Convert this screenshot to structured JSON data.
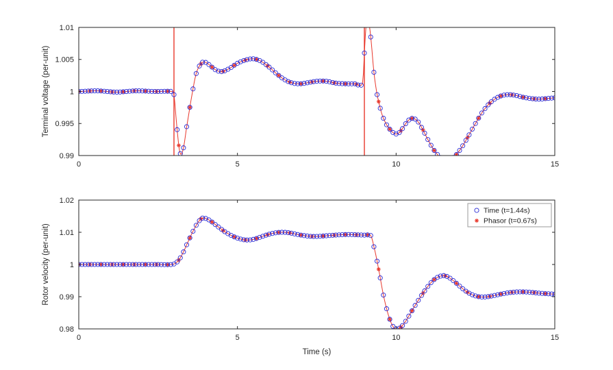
{
  "colors": {
    "time": "#2a2ad4",
    "phasor": "#e8372b",
    "axis": "#262626",
    "background": "#ffffff",
    "legend_border": "#999999"
  },
  "chart_data": [
    {
      "type": "line",
      "title": "",
      "xlabel": "",
      "ylabel": "Terminal voltage (per-unit)",
      "xlim": [
        0,
        15
      ],
      "ylim": [
        0.99,
        1.01
      ],
      "xticks": [
        0,
        5,
        10,
        15
      ],
      "xtick_labels": [
        "0",
        "5",
        "10",
        "15"
      ],
      "yticks": [
        0.99,
        0.995,
        1,
        1.005,
        1.01
      ],
      "ytick_labels": [
        "0.99",
        "0.995",
        "1",
        "1.005",
        "1.01"
      ],
      "grid": false,
      "spikes": [
        3.0,
        9.0
      ],
      "series": [
        {
          "name": "Time (t=1.44s)",
          "marker": "circle",
          "color_key": "time",
          "marker_interval": 0.1
        },
        {
          "name": "Phasor (t=0.67s)",
          "marker": "asterisk",
          "color_key": "phasor",
          "marker_interval": 0.35,
          "line": true
        }
      ],
      "curve": [
        [
          0,
          1.0
        ],
        [
          0.6,
          1.0001
        ],
        [
          1.2,
          0.9999
        ],
        [
          1.8,
          1.0001
        ],
        [
          2.4,
          1.0
        ],
        [
          2.95,
          1.0
        ],
        [
          3.0,
          0.9995
        ],
        [
          3.08,
          0.995
        ],
        [
          3.18,
          0.9906
        ],
        [
          3.28,
          0.9908
        ],
        [
          3.4,
          0.9945
        ],
        [
          3.55,
          0.999
        ],
        [
          3.7,
          1.0028
        ],
        [
          3.85,
          1.0043
        ],
        [
          3.95,
          1.0046
        ],
        [
          4.1,
          1.0042
        ],
        [
          4.3,
          1.0034
        ],
        [
          4.5,
          1.0031
        ],
        [
          4.75,
          1.0036
        ],
        [
          5.0,
          1.0044
        ],
        [
          5.25,
          1.0049
        ],
        [
          5.5,
          1.0051
        ],
        [
          5.75,
          1.0047
        ],
        [
          6.0,
          1.0038
        ],
        [
          6.25,
          1.0027
        ],
        [
          6.5,
          1.0018
        ],
        [
          6.75,
          1.0013
        ],
        [
          7.0,
          1.0012
        ],
        [
          7.25,
          1.0014
        ],
        [
          7.5,
          1.0016
        ],
        [
          7.8,
          1.0016
        ],
        [
          8.1,
          1.0013
        ],
        [
          8.4,
          1.0012
        ],
        [
          8.7,
          1.0012
        ],
        [
          8.95,
          1.0013
        ],
        [
          9.0,
          1.006
        ],
        [
          9.06,
          1.0108
        ],
        [
          9.12,
          1.0112
        ],
        [
          9.2,
          1.0085
        ],
        [
          9.3,
          1.003
        ],
        [
          9.4,
          0.9995
        ],
        [
          9.55,
          0.9965
        ],
        [
          9.7,
          0.9948
        ],
        [
          9.9,
          0.9936
        ],
        [
          10.05,
          0.9934
        ],
        [
          10.2,
          0.9942
        ],
        [
          10.35,
          0.9953
        ],
        [
          10.5,
          0.9958
        ],
        [
          10.65,
          0.9955
        ],
        [
          10.8,
          0.9944
        ],
        [
          11.0,
          0.9925
        ],
        [
          11.2,
          0.9908
        ],
        [
          11.4,
          0.9897
        ],
        [
          11.6,
          0.9893
        ],
        [
          11.8,
          0.9897
        ],
        [
          12.0,
          0.9908
        ],
        [
          12.25,
          0.9928
        ],
        [
          12.5,
          0.995
        ],
        [
          12.75,
          0.997
        ],
        [
          13.0,
          0.9984
        ],
        [
          13.25,
          0.9992
        ],
        [
          13.5,
          0.9995
        ],
        [
          13.75,
          0.9994
        ],
        [
          14.0,
          0.9991
        ],
        [
          14.25,
          0.9989
        ],
        [
          14.5,
          0.9988
        ],
        [
          14.75,
          0.9989
        ],
        [
          15.0,
          0.999
        ]
      ]
    },
    {
      "type": "line",
      "title": "",
      "xlabel": "Time (s)",
      "ylabel": "Rotor velocity (per-unit)",
      "xlim": [
        0,
        15
      ],
      "ylim": [
        0.98,
        1.02
      ],
      "xticks": [
        0,
        5,
        10,
        15
      ],
      "xtick_labels": [
        "0",
        "5",
        "10",
        "15"
      ],
      "yticks": [
        0.98,
        0.99,
        1,
        1.01,
        1.02
      ],
      "ytick_labels": [
        "0.98",
        "0.99",
        "1",
        "1.01",
        "1.02"
      ],
      "grid": false,
      "spikes": [],
      "series": [
        {
          "name": "Time (t=1.44s)",
          "marker": "circle",
          "color_key": "time",
          "marker_interval": 0.1
        },
        {
          "name": "Phasor (t=0.67s)",
          "marker": "asterisk",
          "color_key": "phasor",
          "marker_interval": 0.35,
          "line": true
        }
      ],
      "legend": {
        "position": "northeast",
        "items": [
          {
            "label": "Time (t=1.44s)",
            "marker": "circle",
            "color_key": "time"
          },
          {
            "label": "Phasor (t=0.67s)",
            "marker": "asterisk",
            "color_key": "phasor"
          }
        ]
      },
      "curve": [
        [
          0,
          1.0
        ],
        [
          0.8,
          1.0
        ],
        [
          1.6,
          1.0
        ],
        [
          2.4,
          1.0
        ],
        [
          2.95,
          1.0
        ],
        [
          3.1,
          1.0008
        ],
        [
          3.25,
          1.003
        ],
        [
          3.45,
          1.0072
        ],
        [
          3.65,
          1.0112
        ],
        [
          3.8,
          1.0136
        ],
        [
          3.9,
          1.0144
        ],
        [
          4.0,
          1.0143
        ],
        [
          4.15,
          1.0135
        ],
        [
          4.35,
          1.012
        ],
        [
          4.6,
          1.0102
        ],
        [
          4.85,
          1.0088
        ],
        [
          5.1,
          1.0079
        ],
        [
          5.3,
          1.0076
        ],
        [
          5.5,
          1.0078
        ],
        [
          5.75,
          1.0086
        ],
        [
          6.0,
          1.0094
        ],
        [
          6.25,
          1.0099
        ],
        [
          6.45,
          1.01
        ],
        [
          6.65,
          1.0098
        ],
        [
          6.9,
          1.0093
        ],
        [
          7.15,
          1.0089
        ],
        [
          7.4,
          1.0087
        ],
        [
          7.65,
          1.0088
        ],
        [
          7.9,
          1.009
        ],
        [
          8.2,
          1.0092
        ],
        [
          8.5,
          1.0093
        ],
        [
          8.8,
          1.0092
        ],
        [
          9.05,
          1.0091
        ],
        [
          9.2,
          1.009
        ],
        [
          9.3,
          1.0055
        ],
        [
          9.45,
          0.9985
        ],
        [
          9.6,
          0.9905
        ],
        [
          9.75,
          0.9845
        ],
        [
          9.9,
          0.9808
        ],
        [
          10.0,
          0.98
        ],
        [
          10.1,
          0.9802
        ],
        [
          10.25,
          0.9817
        ],
        [
          10.45,
          0.9848
        ],
        [
          10.65,
          0.9881
        ],
        [
          10.85,
          0.9911
        ],
        [
          11.05,
          0.9938
        ],
        [
          11.25,
          0.9957
        ],
        [
          11.45,
          0.9965
        ],
        [
          11.6,
          0.9963
        ],
        [
          11.8,
          0.995
        ],
        [
          12.0,
          0.9933
        ],
        [
          12.2,
          0.9917
        ],
        [
          12.4,
          0.9906
        ],
        [
          12.6,
          0.99
        ],
        [
          12.8,
          0.9899
        ],
        [
          13.0,
          0.9902
        ],
        [
          13.3,
          0.9908
        ],
        [
          13.6,
          0.9913
        ],
        [
          13.9,
          0.9915
        ],
        [
          14.2,
          0.9914
        ],
        [
          14.5,
          0.9911
        ],
        [
          14.8,
          0.9909
        ],
        [
          15.0,
          0.9908
        ]
      ]
    }
  ]
}
